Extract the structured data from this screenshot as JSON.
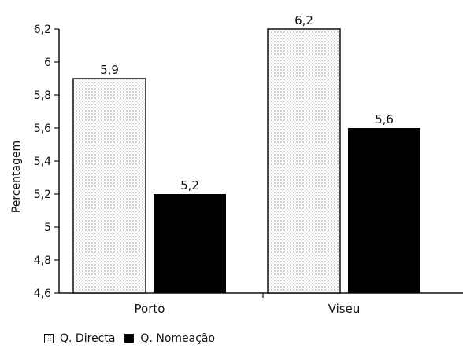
{
  "chart_data": {
    "type": "bar",
    "title": "",
    "xlabel": "",
    "ylabel": "Percentagem",
    "ylim": [
      4.6,
      6.2
    ],
    "yticks": [
      "4,6",
      "4,8",
      "5",
      "5,2",
      "5,4",
      "5,6",
      "5,8",
      "6",
      "6,2"
    ],
    "categories": [
      "Porto",
      "Viseu"
    ],
    "series": [
      {
        "name": "Q. Directa",
        "values": [
          5.9,
          6.2
        ],
        "labels": [
          "5,9",
          "6,2"
        ],
        "pattern": "dotted"
      },
      {
        "name": "Q. Nomeação",
        "values": [
          5.2,
          5.6
        ],
        "labels": [
          "5,2",
          "5,6"
        ],
        "color": "#000000"
      }
    ],
    "grid": false,
    "legend": "bottom-left"
  }
}
